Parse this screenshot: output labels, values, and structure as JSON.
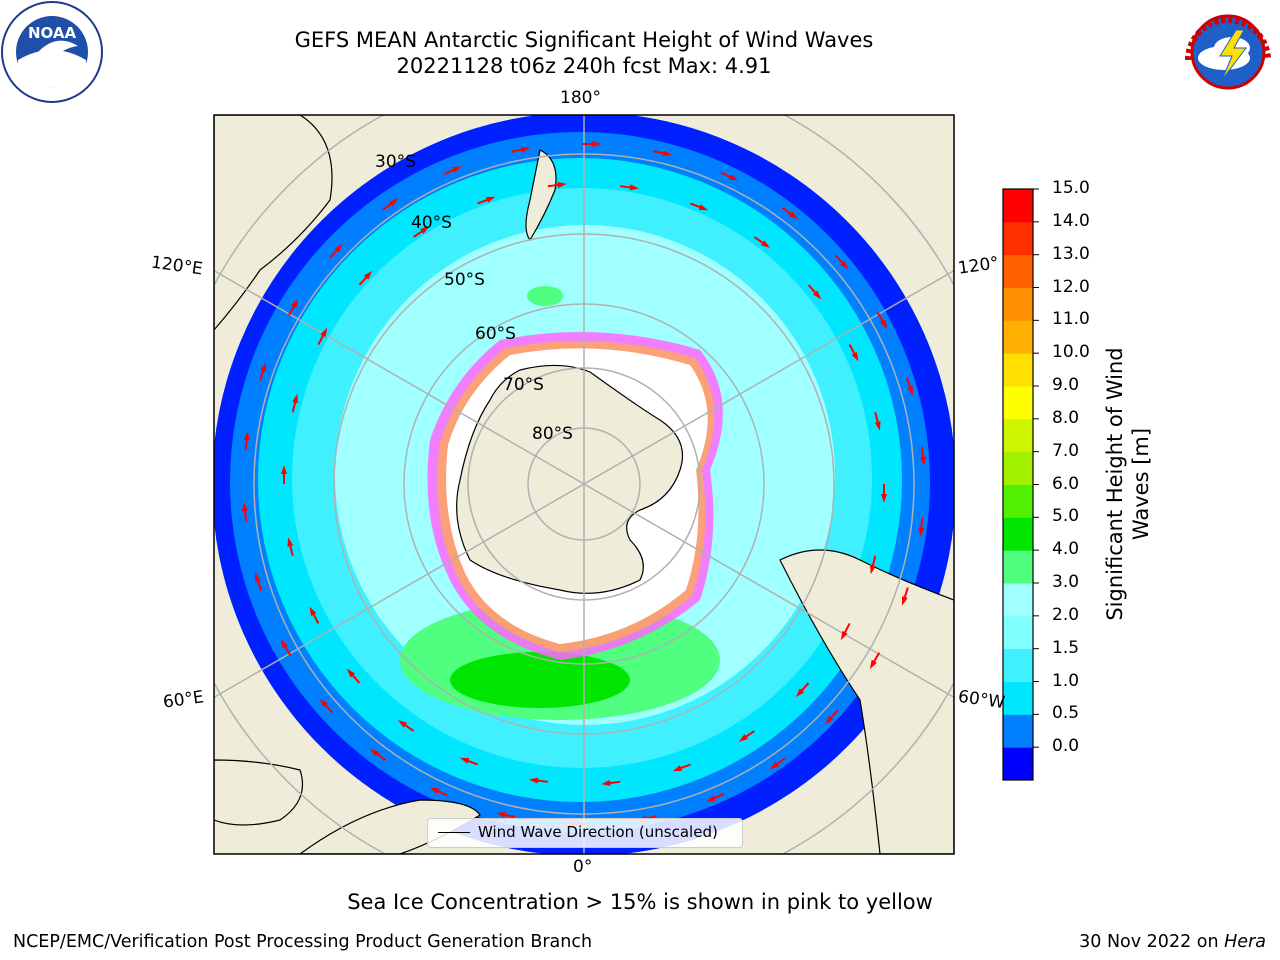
{
  "title": {
    "line1": "GEFS MEAN Antarctic Significant Height of Wind Waves",
    "line2": "20221128 t06z 240h fcst   Max: 4.91"
  },
  "logos": {
    "noaa_text": "NOAA",
    "noaa_ring": "NATIONAL OCEANIC AND ATMOSPHERIC ADMINISTRATION · U.S. DEPARTMENT OF COMMERCE",
    "nws_ring": "NATIONAL WEATHER SERVICE"
  },
  "map": {
    "projection": "south-polar-stereographic",
    "longitude_labels": {
      "top": "180°",
      "bottom": "0°",
      "left_upper": "120°E",
      "left_lower": "60°E",
      "right_upper": "120°",
      "right_lower": "60°W"
    },
    "latitude_labels": [
      "30°S",
      "40°S",
      "50°S",
      "60°S",
      "70°S",
      "80°S"
    ],
    "legend_label": "Wind Wave Direction (unscaled)",
    "arrow_color": "#ff0000",
    "land_color": "#efedda",
    "ice_color": "#ffffff"
  },
  "colorbar": {
    "title": "Significant Height of Wind Waves [m]",
    "ticks": [
      "15.0",
      "14.0",
      "13.0",
      "12.0",
      "11.0",
      "10.0",
      "9.0",
      "8.0",
      "7.0",
      "6.0",
      "5.0",
      "4.0",
      "3.0",
      "2.0",
      "1.5",
      "1.0",
      "0.5",
      "0.0"
    ],
    "colors": [
      "#0000ff",
      "#0080ff",
      "#00e6ff",
      "#40f0ff",
      "#80ffff",
      "#a0ffff",
      "#50ff80",
      "#00e600",
      "#50f000",
      "#a0f000",
      "#d0f500",
      "#ffff00",
      "#ffe000",
      "#ffb000",
      "#ff9000",
      "#ff6000",
      "#ff3000",
      "#ff0000"
    ]
  },
  "note": "Sea Ice Concentration > 15% is shown in pink to yellow",
  "footer": {
    "left": "NCEP/EMC/Verification Post Processing Product Generation Branch",
    "right_date": "30 Nov 2022 on ",
    "right_host": "Hera"
  }
}
